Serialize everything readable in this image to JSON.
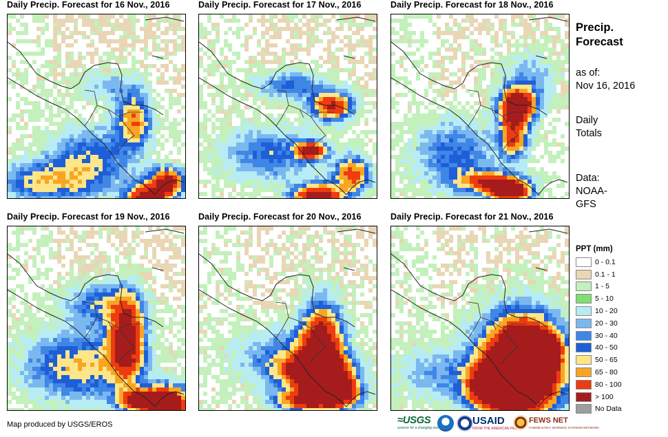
{
  "panels": [
    {
      "title": "Daily Precip. Forecast for 16 Nov., 2016"
    },
    {
      "title": "Daily Precip. Forecast for 17 Nov., 2016"
    },
    {
      "title": "Daily Precip. Forecast for 18 Nov., 2016"
    },
    {
      "title": "Daily Precip. Forecast for 19 Nov., 2016"
    },
    {
      "title": "Daily Precip. Forecast for 20 Nov., 2016"
    },
    {
      "title": "Daily Precip. Forecast for 21 Nov., 2016"
    }
  ],
  "side": {
    "heading_line1": "Precip.",
    "heading_line2": "Forecast",
    "asof_line1": "as of:",
    "asof_line2": "Nov 16, 2016",
    "daily_line1": "Daily",
    "daily_line2": "Totals",
    "data_line1": "Data:",
    "data_line2": "NOAA-",
    "data_line3": "GFS"
  },
  "legend": {
    "title": "PPT (mm)",
    "items": [
      {
        "label": "0 - 0.1",
        "color": "#ffffff"
      },
      {
        "label": "0.1 - 1",
        "color": "#e8d6b5"
      },
      {
        "label": "1 - 5",
        "color": "#c3f0bc"
      },
      {
        "label": "5 - 10",
        "color": "#7ee06f"
      },
      {
        "label": "10 - 20",
        "color": "#b7ecf5"
      },
      {
        "label": "20 - 30",
        "color": "#7cb8f0"
      },
      {
        "label": "30 - 40",
        "color": "#3f86e6"
      },
      {
        "label": "40 - 50",
        "color": "#1e5fd8"
      },
      {
        "label": "50 - 65",
        "color": "#fde68a"
      },
      {
        "label": "65 - 80",
        "color": "#f6a623"
      },
      {
        "label": "80 - 100",
        "color": "#ee3b0f"
      },
      {
        "label": "> 100",
        "color": "#a61c1c"
      },
      {
        "label": "No Data",
        "color": "#9e9e9e"
      }
    ]
  },
  "credit": "Map produced by USGS/EROS",
  "logos": {
    "usgs": "≈USGS",
    "usgs_tagline": "science for a changing world",
    "usaid": "USAID",
    "usaid_tagline": "FROM THE AMERICAN PEOPLE",
    "fews": "FEWS NET",
    "fews_tagline": "FAMINE EARLY WARNING SYSTEMS NETWORK"
  }
}
